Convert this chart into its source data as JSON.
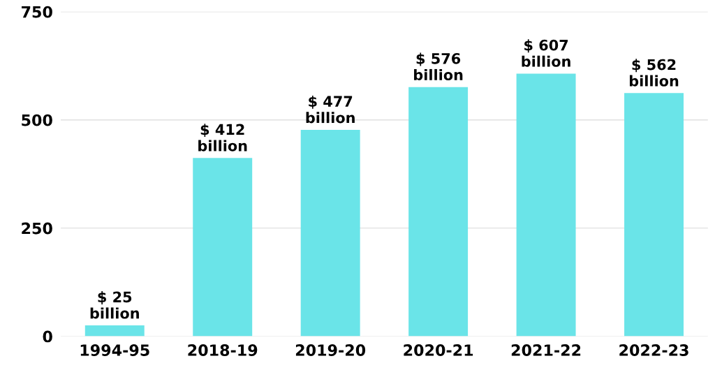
{
  "chart_data": {
    "type": "bar",
    "categories": [
      "1994-95",
      "2018-19",
      "2019-20",
      "2020-21",
      "2021-22",
      "2022-23"
    ],
    "values": [
      25,
      412,
      477,
      576,
      607,
      562
    ],
    "value_labels": [
      "$ 25 billion",
      "$ 412 billion",
      "$ 477 billion",
      "$ 576 billion",
      "$ 607 billion",
      "$ 562 billion"
    ],
    "color": "#6ae4e8",
    "ylim": [
      0,
      750
    ],
    "yticks": [
      0,
      250,
      500,
      750
    ],
    "grid": "y"
  }
}
